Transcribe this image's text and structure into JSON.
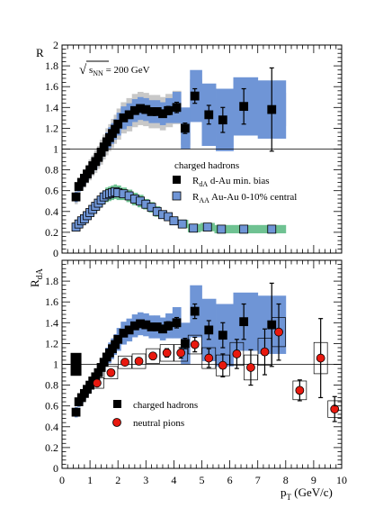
{
  "chart_data": [
    {
      "type": "scatter",
      "panel": "top",
      "ylabel": "R",
      "xlim": [
        0,
        10
      ],
      "ylim": [
        0,
        2
      ],
      "yticks": [
        "0",
        "0.2",
        "0.4",
        "0.6",
        "0.8",
        "1",
        "1.2",
        "1.4",
        "1.6",
        "1.8",
        "2"
      ],
      "reference_line": 1,
      "annotation": "√s_NN = 200 GeV",
      "annotation_parts": {
        "sqrt_symbol": "√",
        "s": "s",
        "sub": "NN",
        "rest": " = 200 GeV"
      },
      "legend_title": "charged hadrons",
      "legend": [
        {
          "sym": "R",
          "sub": "dA",
          "desc": "  d-Au min. bias"
        },
        {
          "sym": "R",
          "sub": "AA",
          "desc": "  Au-Au 0-10% central"
        }
      ],
      "series": [
        {
          "marker": "filled-square",
          "color": "#000000",
          "band_outer_color": "#c8c8c8",
          "band_inner_color": "#6f95d6",
          "x": [
            0.5,
            0.6,
            0.7,
            0.8,
            0.9,
            1.0,
            1.1,
            1.2,
            1.3,
            1.4,
            1.5,
            1.6,
            1.7,
            1.8,
            1.9,
            2.0,
            2.2,
            2.4,
            2.6,
            2.8,
            3.0,
            3.2,
            3.4,
            3.6,
            3.8,
            4.1,
            4.4,
            4.75,
            5.25,
            5.75,
            6.5,
            7.5
          ],
          "y": [
            0.54,
            0.64,
            0.68,
            0.72,
            0.76,
            0.8,
            0.84,
            0.88,
            0.92,
            0.97,
            1.02,
            1.07,
            1.11,
            1.15,
            1.19,
            1.24,
            1.3,
            1.33,
            1.37,
            1.39,
            1.38,
            1.36,
            1.36,
            1.34,
            1.37,
            1.4,
            1.2,
            1.51,
            1.33,
            1.28,
            1.41,
            1.38
          ],
          "err": [
            0.01,
            0.01,
            0.01,
            0.01,
            0.01,
            0.01,
            0.01,
            0.01,
            0.01,
            0.01,
            0.01,
            0.01,
            0.01,
            0.01,
            0.01,
            0.01,
            0.01,
            0.02,
            0.02,
            0.02,
            0.02,
            0.02,
            0.03,
            0.03,
            0.04,
            0.05,
            0.05,
            0.07,
            0.09,
            0.12,
            0.17,
            0.4
          ],
          "band_outer": [
            0.07,
            0.08,
            0.08,
            0.09,
            0.09,
            0.1,
            0.1,
            0.11,
            0.11,
            0.12,
            0.12,
            0.13,
            0.13,
            0.14,
            0.14,
            0.15,
            0.15,
            0.16,
            0.16,
            0.16,
            0.16,
            0.16,
            0.16,
            0.16,
            0.16,
            0.16,
            0.16,
            0.16,
            0.16,
            0.16,
            0.16,
            0.16
          ],
          "band_inner": [
            0.05,
            0.05,
            0.06,
            0.06,
            0.06,
            0.07,
            0.07,
            0.08,
            0.08,
            0.08,
            0.09,
            0.09,
            0.1,
            0.1,
            0.1,
            0.11,
            0.11,
            0.11,
            0.11,
            0.11,
            0.11,
            0.11,
            0.11,
            0.11,
            0.12,
            0.15,
            0.2,
            0.25,
            0.3,
            0.3,
            0.28,
            0.28
          ]
        },
        {
          "marker": "open-square",
          "color": "#6f95d6",
          "band_color": "#6fc292",
          "x": [
            0.5,
            0.6,
            0.7,
            0.8,
            0.9,
            1.0,
            1.1,
            1.2,
            1.3,
            1.4,
            1.5,
            1.6,
            1.7,
            1.8,
            1.9,
            2.0,
            2.2,
            2.4,
            2.6,
            2.8,
            3.0,
            3.2,
            3.4,
            3.6,
            3.8,
            4.0,
            4.3,
            4.7,
            5.2,
            5.7,
            6.5,
            7.5
          ],
          "y": [
            0.25,
            0.28,
            0.31,
            0.33,
            0.36,
            0.39,
            0.42,
            0.45,
            0.48,
            0.51,
            0.54,
            0.56,
            0.57,
            0.58,
            0.59,
            0.58,
            0.57,
            0.55,
            0.52,
            0.5,
            0.47,
            0.44,
            0.4,
            0.37,
            0.35,
            0.31,
            0.28,
            0.24,
            0.25,
            0.23,
            0.23,
            0.23
          ],
          "band": [
            0.03,
            0.03,
            0.04,
            0.04,
            0.04,
            0.05,
            0.05,
            0.05,
            0.06,
            0.06,
            0.06,
            0.07,
            0.07,
            0.07,
            0.07,
            0.07,
            0.06,
            0.06,
            0.06,
            0.06,
            0.05,
            0.05,
            0.05,
            0.04,
            0.04,
            0.04,
            0.04,
            0.04,
            0.04,
            0.04,
            0.04,
            0.04
          ]
        }
      ]
    },
    {
      "type": "scatter",
      "panel": "bottom",
      "ylabel": "R",
      "ylabel_sub": "dA",
      "xlabel": "p",
      "xlabel_sub": "T",
      "xlabel_unit": " (GeV/c)",
      "xlim": [
        0,
        10
      ],
      "ylim": [
        0,
        2
      ],
      "xticks": [
        "0",
        "1",
        "2",
        "3",
        "4",
        "5",
        "6",
        "7",
        "8",
        "9",
        "10"
      ],
      "yticks": [
        "0",
        "0.2",
        "0.4",
        "0.6",
        "0.8",
        "1",
        "1.2",
        "1.4",
        "1.6",
        "1.8"
      ],
      "reference_line": 1,
      "normalization_box": {
        "x": 0.5,
        "y": 1.0,
        "half": 0.11,
        "color": "#000000"
      },
      "legend": [
        {
          "label": "charged hadrons",
          "marker": "filled-square"
        },
        {
          "label": "neutral pions",
          "marker": "red-circle"
        }
      ],
      "series": [
        {
          "marker": "filled-square",
          "color": "#000000",
          "band_color": "#6f95d6",
          "x": [
            0.5,
            0.6,
            0.7,
            0.8,
            0.9,
            1.0,
            1.1,
            1.2,
            1.3,
            1.4,
            1.5,
            1.6,
            1.7,
            1.8,
            1.9,
            2.0,
            2.2,
            2.4,
            2.6,
            2.8,
            3.0,
            3.2,
            3.4,
            3.6,
            3.8,
            4.1,
            4.4,
            4.75,
            5.25,
            5.75,
            6.5,
            7.5
          ],
          "y": [
            0.54,
            0.64,
            0.68,
            0.72,
            0.76,
            0.8,
            0.84,
            0.88,
            0.92,
            0.97,
            1.02,
            1.07,
            1.11,
            1.15,
            1.19,
            1.24,
            1.3,
            1.33,
            1.37,
            1.39,
            1.38,
            1.36,
            1.36,
            1.34,
            1.37,
            1.4,
            1.2,
            1.51,
            1.33,
            1.28,
            1.41,
            1.38
          ],
          "err": [
            0.01,
            0.01,
            0.01,
            0.01,
            0.01,
            0.01,
            0.01,
            0.01,
            0.01,
            0.01,
            0.01,
            0.01,
            0.01,
            0.01,
            0.01,
            0.01,
            0.01,
            0.02,
            0.02,
            0.02,
            0.02,
            0.02,
            0.03,
            0.03,
            0.04,
            0.05,
            0.05,
            0.07,
            0.09,
            0.12,
            0.17,
            0.4
          ],
          "band": [
            0.05,
            0.05,
            0.06,
            0.06,
            0.06,
            0.07,
            0.07,
            0.08,
            0.08,
            0.08,
            0.09,
            0.09,
            0.1,
            0.1,
            0.1,
            0.11,
            0.11,
            0.11,
            0.11,
            0.11,
            0.11,
            0.11,
            0.11,
            0.11,
            0.12,
            0.15,
            0.2,
            0.25,
            0.3,
            0.3,
            0.28,
            0.28
          ]
        },
        {
          "marker": "red-circle",
          "color": "#e8190f",
          "x": [
            1.25,
            1.75,
            2.25,
            2.75,
            3.25,
            3.75,
            4.25,
            4.75,
            5.25,
            5.75,
            6.25,
            6.75,
            7.25,
            7.75,
            8.5,
            9.25,
            9.75
          ],
          "y": [
            0.82,
            0.92,
            1.02,
            1.03,
            1.08,
            1.11,
            1.11,
            1.19,
            1.06,
            0.99,
            1.1,
            0.97,
            1.12,
            1.31,
            0.75,
            1.06,
            0.57
          ],
          "err": [
            0.02,
            0.02,
            0.02,
            0.03,
            0.03,
            0.04,
            0.05,
            0.07,
            0.09,
            0.11,
            0.14,
            0.17,
            0.22,
            0.27,
            0.1,
            0.38,
            0.12
          ],
          "box": [
            0.05,
            0.06,
            0.06,
            0.07,
            0.07,
            0.08,
            0.08,
            0.09,
            0.1,
            0.1,
            0.11,
            0.12,
            0.13,
            0.14,
            0.09,
            0.15,
            0.08
          ]
        }
      ]
    }
  ]
}
